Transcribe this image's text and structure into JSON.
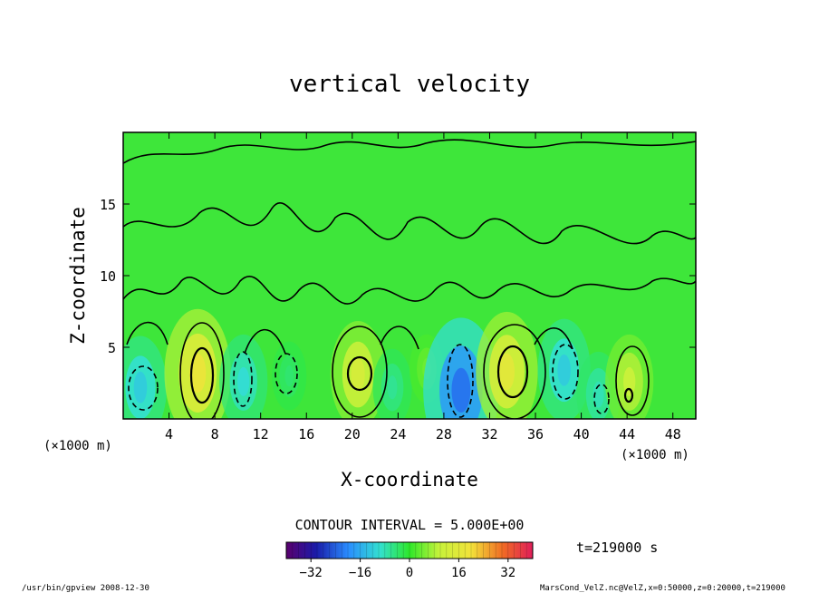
{
  "chart_data": {
    "type": "heatmap",
    "title": "vertical velocity",
    "xlabel": "X-coordinate",
    "ylabel": "Z-coordinate",
    "x_unit": "(×1000 m)",
    "y_unit": "(×1000 m)",
    "xlim": [
      0,
      50
    ],
    "ylim": [
      0,
      20
    ],
    "x_ticks": [
      4,
      8,
      12,
      16,
      20,
      24,
      28,
      32,
      36,
      40,
      44,
      48
    ],
    "y_ticks": [
      5,
      10,
      15
    ],
    "contour_interval": "CONTOUR INTERVAL = 5.000E+00",
    "time_label": "t=219000 s",
    "colorbar_ticks": [
      -32,
      -16,
      0,
      16,
      32
    ],
    "colorbar_range": [
      -40,
      40
    ],
    "cells": [
      {
        "x": 1.5,
        "z": 2.2,
        "w": -12
      },
      {
        "x": 6.5,
        "z": 3.2,
        "w": 18
      },
      {
        "x": 10.5,
        "z": 2.6,
        "w": -10
      },
      {
        "x": 14.5,
        "z": 3.0,
        "w": -4
      },
      {
        "x": 20.5,
        "z": 3.1,
        "w": 13
      },
      {
        "x": 23.5,
        "z": 2.2,
        "w": -6
      },
      {
        "x": 26.5,
        "z": 3.5,
        "w": 4
      },
      {
        "x": 29.5,
        "z": 2.0,
        "w": -22
      },
      {
        "x": 33.5,
        "z": 3.3,
        "w": 16
      },
      {
        "x": 38.5,
        "z": 3.4,
        "w": -12
      },
      {
        "x": 41.5,
        "z": 1.7,
        "w": -8
      },
      {
        "x": 44.2,
        "z": 2.6,
        "w": 10
      }
    ],
    "footer_left": "/usr/bin/gpview  2008-12-30",
    "footer_right": "MarsCond_VelZ.nc@VelZ,x=0:50000,z=0:20000,t=219000"
  }
}
